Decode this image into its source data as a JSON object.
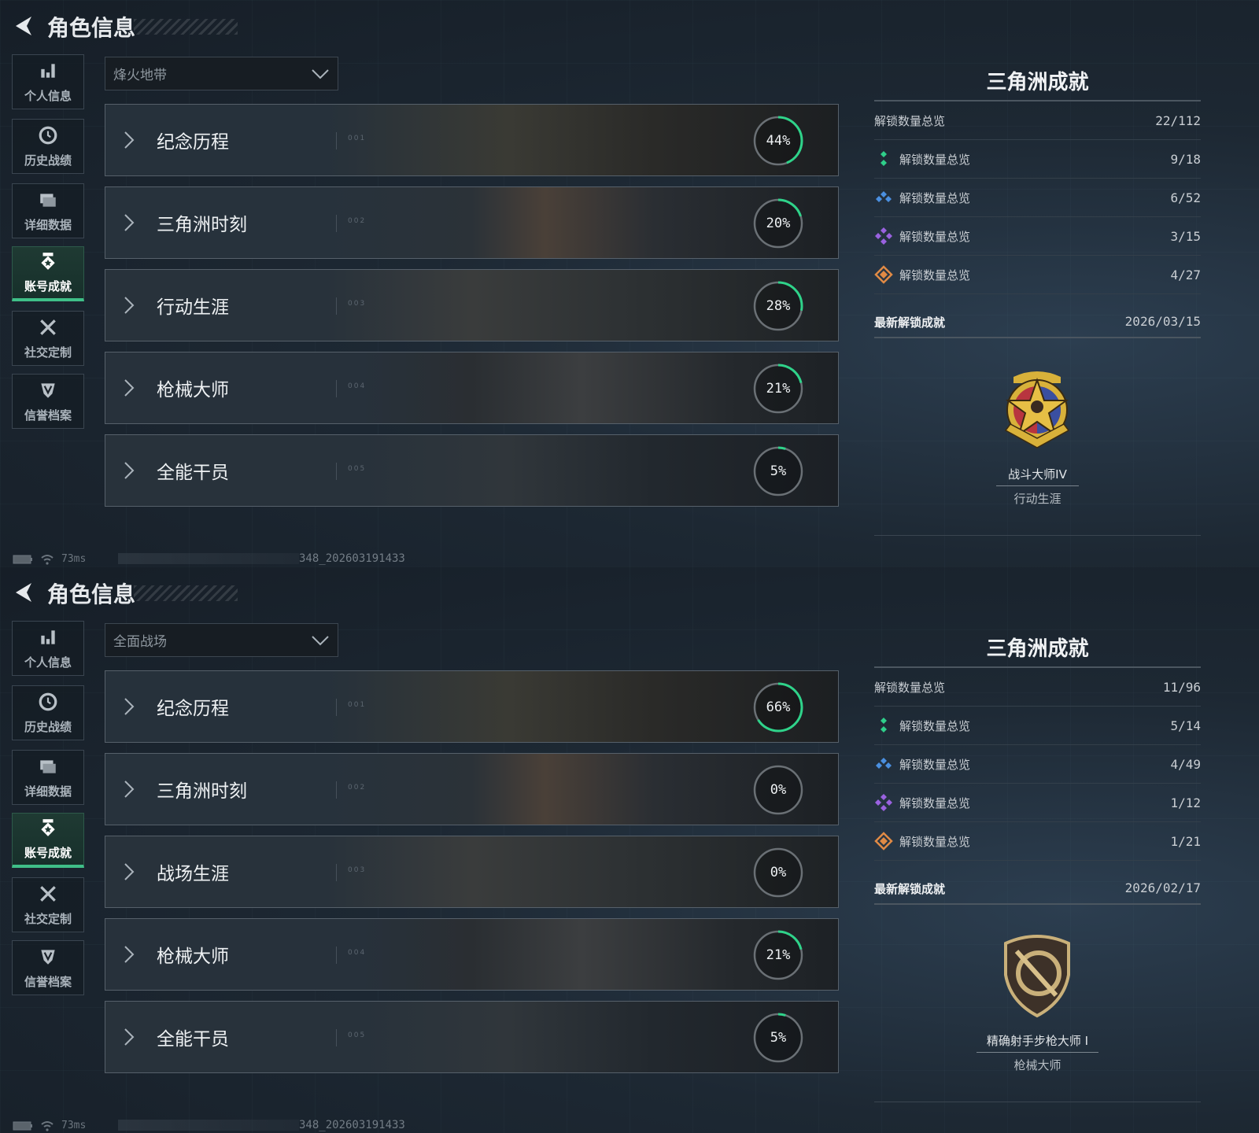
{
  "screens": [
    {
      "header": {
        "title": "角色信息"
      },
      "sidebar": [
        {
          "label": "个人信息",
          "icon": "bar-chart-icon"
        },
        {
          "label": "历史战绩",
          "icon": "clock-icon"
        },
        {
          "label": "详细数据",
          "icon": "folder-icon"
        },
        {
          "label": "账号成就",
          "icon": "badge-icon",
          "active": true
        },
        {
          "label": "社交定制",
          "icon": "tools-icon"
        },
        {
          "label": "信誉档案",
          "icon": "shield-icon"
        }
      ],
      "mode_select": {
        "value": "烽火地带"
      },
      "categories": [
        {
          "name": "纪念历程",
          "code": "001",
          "percent": 44,
          "percent_label": "44%"
        },
        {
          "name": "三角洲时刻",
          "code": "002",
          "percent": 20,
          "percent_label": "20%"
        },
        {
          "name": "行动生涯",
          "code": "003",
          "percent": 28,
          "percent_label": "28%"
        },
        {
          "name": "枪械大师",
          "code": "004",
          "percent": 21,
          "percent_label": "21%"
        },
        {
          "name": "全能干员",
          "code": "005",
          "percent": 5,
          "percent_label": "5%"
        }
      ],
      "summary": {
        "title": "三角洲成就",
        "total": {
          "label": "解锁数量总览",
          "value": "22/112"
        },
        "tiers": [
          {
            "label": "解锁数量总览",
            "value": "9/18",
            "color": "#2fcf8a",
            "icon": "green-tier-icon"
          },
          {
            "label": "解锁数量总览",
            "value": "6/52",
            "color": "#4a8fe0",
            "icon": "blue-tier-icon"
          },
          {
            "label": "解锁数量总览",
            "value": "3/15",
            "color": "#9a62e0",
            "icon": "purple-tier-icon"
          },
          {
            "label": "解锁数量总览",
            "value": "4/27",
            "color": "#e08a45",
            "icon": "orange-tier-icon"
          }
        ],
        "latest": {
          "label": "最新解锁成就",
          "date": "2026/03/15",
          "name": "战斗大师IV",
          "category": "行动生涯",
          "badge": "star-medal"
        }
      },
      "status": {
        "ping": "73ms",
        "build": "348_202603191433"
      }
    },
    {
      "header": {
        "title": "角色信息"
      },
      "sidebar": [
        {
          "label": "个人信息",
          "icon": "bar-chart-icon"
        },
        {
          "label": "历史战绩",
          "icon": "clock-icon"
        },
        {
          "label": "详细数据",
          "icon": "folder-icon"
        },
        {
          "label": "账号成就",
          "icon": "badge-icon",
          "active": true
        },
        {
          "label": "社交定制",
          "icon": "tools-icon"
        },
        {
          "label": "信誉档案",
          "icon": "shield-icon"
        }
      ],
      "mode_select": {
        "value": "全面战场"
      },
      "categories": [
        {
          "name": "纪念历程",
          "code": "001",
          "percent": 66,
          "percent_label": "66%"
        },
        {
          "name": "三角洲时刻",
          "code": "002",
          "percent": 0,
          "percent_label": "0%"
        },
        {
          "name": "战场生涯",
          "code": "003",
          "percent": 0,
          "percent_label": "0%"
        },
        {
          "name": "枪械大师",
          "code": "004",
          "percent": 21,
          "percent_label": "21%"
        },
        {
          "name": "全能干员",
          "code": "005",
          "percent": 5,
          "percent_label": "5%"
        }
      ],
      "summary": {
        "title": "三角洲成就",
        "total": {
          "label": "解锁数量总览",
          "value": "11/96"
        },
        "tiers": [
          {
            "label": "解锁数量总览",
            "value": "5/14",
            "color": "#2fcf8a",
            "icon": "green-tier-icon"
          },
          {
            "label": "解锁数量总览",
            "value": "4/49",
            "color": "#4a8fe0",
            "icon": "blue-tier-icon"
          },
          {
            "label": "解锁数量总览",
            "value": "1/12",
            "color": "#9a62e0",
            "icon": "purple-tier-icon"
          },
          {
            "label": "解锁数量总览",
            "value": "1/21",
            "color": "#e08a45",
            "icon": "orange-tier-icon"
          }
        ],
        "latest": {
          "label": "最新解锁成就",
          "date": "2026/02/17",
          "name": "精确射手步枪大师 I",
          "category": "枪械大师",
          "badge": "rifle-shield"
        }
      },
      "status": {
        "ping": "73ms",
        "build": "348_202603191433"
      }
    }
  ],
  "accent_color": "#3fbf88"
}
